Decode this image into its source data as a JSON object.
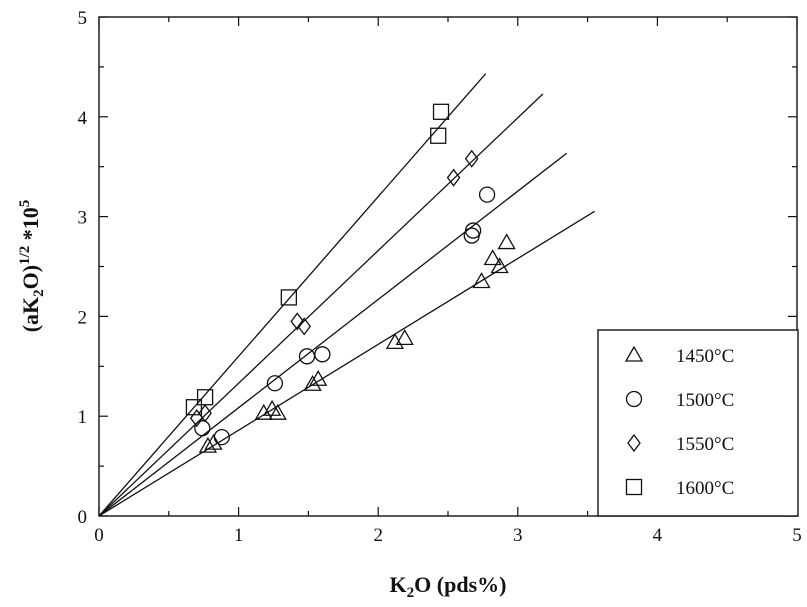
{
  "chart_data": {
    "type": "scatter",
    "title": "",
    "xlabel_main": "K",
    "xlabel_sub": "2",
    "xlabel_rest": "O (pds%)",
    "ylabel_a": "(aK",
    "ylabel_sub": "2",
    "ylabel_b": "O)",
    "ylabel_sup": "1/2",
    "ylabel_c": " *10",
    "ylabel_sup2": "5",
    "xlim": [
      0,
      5
    ],
    "ylim": [
      0,
      5
    ],
    "xticks": [
      "0",
      "1",
      "2",
      "3",
      "4",
      "5"
    ],
    "yticks": [
      "0",
      "1",
      "2",
      "3",
      "4",
      "5"
    ],
    "legend_position": "bottom-right",
    "series": [
      {
        "name": "1450°C",
        "marker": "triangle",
        "slope": 0.86,
        "fit_x_end": 3.55,
        "points": [
          [
            0.78,
            0.7
          ],
          [
            0.82,
            0.73
          ],
          [
            1.18,
            1.03
          ],
          [
            1.24,
            1.07
          ],
          [
            1.28,
            1.03
          ],
          [
            1.53,
            1.32
          ],
          [
            1.57,
            1.37
          ],
          [
            2.12,
            1.74
          ],
          [
            2.19,
            1.78
          ],
          [
            2.74,
            2.35
          ],
          [
            2.82,
            2.58
          ],
          [
            2.87,
            2.5
          ],
          [
            2.92,
            2.74
          ]
        ]
      },
      {
        "name": "1500°C",
        "marker": "circle",
        "slope": 1.085,
        "fit_x_end": 3.35,
        "points": [
          [
            0.74,
            0.88
          ],
          [
            0.88,
            0.79
          ],
          [
            1.26,
            1.33
          ],
          [
            1.49,
            1.6
          ],
          [
            1.6,
            1.62
          ],
          [
            2.67,
            2.81
          ],
          [
            2.68,
            2.86
          ],
          [
            2.78,
            3.22
          ]
        ]
      },
      {
        "name": "1550°C",
        "marker": "diamond",
        "slope": 1.33,
        "fit_x_end": 3.18,
        "points": [
          [
            0.7,
            0.98
          ],
          [
            0.76,
            1.03
          ],
          [
            1.42,
            1.95
          ],
          [
            1.47,
            1.9
          ],
          [
            2.54,
            3.39
          ],
          [
            2.67,
            3.58
          ]
        ]
      },
      {
        "name": "1600°C",
        "marker": "square",
        "slope": 1.6,
        "fit_x_end": 2.77,
        "points": [
          [
            0.68,
            1.09
          ],
          [
            0.76,
            1.19
          ],
          [
            1.36,
            2.19
          ],
          [
            2.43,
            3.81
          ],
          [
            2.45,
            4.05
          ]
        ]
      }
    ]
  }
}
